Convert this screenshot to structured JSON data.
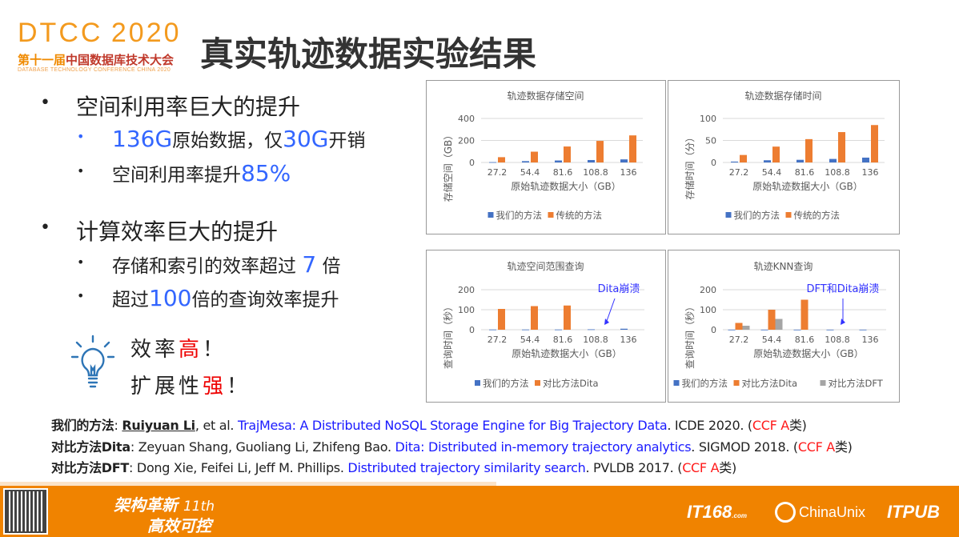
{
  "logo": {
    "main": "DTCC",
    "year": "2020",
    "sub_orange": "第十一届",
    "sub_dark": "中国数据库技术大会",
    "en": "DATABASE TECHNOLOGY CONFERENCE CHINA 2020"
  },
  "title": "真实轨迹数据实验结果",
  "bullets": [
    {
      "text": "空间利用率巨大的提升",
      "subs": [
        {
          "parts": [
            {
              "t": "136G",
              "hl": true
            },
            {
              "t": "原始数据，仅"
            },
            {
              "t": "30G",
              "hl": true
            },
            {
              "t": "开销"
            }
          ]
        },
        {
          "parts": [
            {
              "t": "空间利用率提升"
            },
            {
              "t": "85%",
              "hl": true
            }
          ]
        }
      ]
    },
    {
      "text": "计算效率巨大的提升",
      "subs": [
        {
          "parts": [
            {
              "t": "存储和索引的效率超过 "
            },
            {
              "t": "7",
              "hl": true
            },
            {
              "t": " 倍"
            }
          ]
        },
        {
          "parts": [
            {
              "t": "超过"
            },
            {
              "t": "100",
              "hl": true
            },
            {
              "t": "倍的查询效率提升"
            }
          ]
        }
      ]
    }
  ],
  "slogan": {
    "line1a": "效率",
    "line1b": "高",
    "line1c": "！",
    "line2a": "扩展性",
    "line2b": "强",
    "line2c": "！"
  },
  "colors": {
    "ours": "#4472c4",
    "orange": "#ed7d31",
    "gray": "#a5a5a5",
    "annotation": "#3333ff",
    "footer": "#f08300"
  },
  "chart_data": [
    {
      "type": "bar",
      "title": "轨迹数据存储空间",
      "xlabel": "原始轨迹数据大小（GB）",
      "ylabel": "存储空间（GB）",
      "ylim": [
        0,
        400
      ],
      "yticks": [
        0,
        200,
        400
      ],
      "grid": true,
      "legend": "bottom",
      "categories": [
        "27.2",
        "54.4",
        "81.6",
        "108.8",
        "136"
      ],
      "series": [
        {
          "name": "我们的方法",
          "color": "#4472c4",
          "values": [
            3,
            12,
            18,
            22,
            28
          ]
        },
        {
          "name": "传统的方法",
          "color": "#ed7d31",
          "values": [
            48,
            98,
            145,
            196,
            246
          ]
        }
      ]
    },
    {
      "type": "bar",
      "title": "轨迹数据存储时间",
      "xlabel": "原始轨迹数据大小（GB）",
      "ylabel": "存储时间（分）",
      "ylim": [
        0,
        100
      ],
      "yticks": [
        0,
        50,
        100
      ],
      "grid": true,
      "legend": "bottom",
      "categories": [
        "27.2",
        "54.4",
        "81.6",
        "108.8",
        "136"
      ],
      "series": [
        {
          "name": "我们的方法",
          "color": "#4472c4",
          "values": [
            2,
            5,
            6,
            8,
            11
          ]
        },
        {
          "name": "传统的方法",
          "color": "#ed7d31",
          "values": [
            17,
            36,
            53,
            69,
            85
          ]
        }
      ]
    },
    {
      "type": "bar",
      "title": "轨迹空间范围查询",
      "xlabel": "原始轨迹数据大小（GB）",
      "ylabel": "查询时间（秒）",
      "ylim": [
        0,
        200
      ],
      "yticks": [
        0,
        100,
        200
      ],
      "grid": true,
      "legend": "bottom",
      "categories": [
        "27.2",
        "54.4",
        "81.6",
        "108.8",
        "136"
      ],
      "series": [
        {
          "name": "我们的方法",
          "color": "#4472c4",
          "values": [
            1,
            1,
            1,
            2,
            5
          ]
        },
        {
          "name": "对比方法Dita",
          "color": "#ed7d31",
          "values": [
            104,
            118,
            121,
            null,
            null
          ]
        }
      ],
      "annotation": {
        "text": "Dita崩溃",
        "category": "108.8"
      }
    },
    {
      "type": "bar",
      "title": "轨迹KNN查询",
      "xlabel": "原始轨迹数据大小（GB）",
      "ylabel": "查询时间（秒）",
      "ylim": [
        0,
        200
      ],
      "yticks": [
        0,
        100,
        200
      ],
      "grid": true,
      "legend": "bottom",
      "categories": [
        "27.2",
        "54.4",
        "81.6",
        "108.8",
        "136"
      ],
      "series": [
        {
          "name": "我们的方法",
          "color": "#4472c4",
          "values": [
            0.5,
            0.5,
            0.5,
            0.5,
            0.5
          ]
        },
        {
          "name": "对比方法Dita",
          "color": "#ed7d31",
          "values": [
            34,
            100,
            150,
            null,
            null
          ]
        },
        {
          "name": "对比方法DFT",
          "color": "#a5a5a5",
          "values": [
            20,
            54,
            null,
            null,
            null
          ]
        }
      ],
      "annotation": {
        "text": "DFT和Dita崩溃",
        "category": "108.8"
      }
    }
  ],
  "references": [
    {
      "label": "我们的方法",
      "sep": ": ",
      "author_ul": "Ruiyuan Li",
      "authors": ", et al. ",
      "paper": "TrajMesa: A Distributed NoSQL Storage Engine for Big Trajectory Data",
      "venue": ". ICDE 2020. (",
      "ccf": "CCF A",
      "cls": "类)"
    },
    {
      "label": "对比方法Dita",
      "sep": ": ",
      "author_ul": "",
      "authors": "Zeyuan Shang, Guoliang Li, Zhifeng Bao. ",
      "paper": "Dita: Distributed in-memory trajectory analytics",
      "venue": ". SIGMOD 2018. (",
      "ccf": "CCF A",
      "cls": "类)"
    },
    {
      "label": "对比方法DFT",
      "sep": ": ",
      "author_ul": "",
      "authors": "Dong Xie, Feifei Li, Jeff M. Phillips. ",
      "paper": "Distributed trajectory similarity search",
      "venue": ". PVLDB 2017. (",
      "ccf": "CCF A",
      "cls": "类)"
    }
  ],
  "footer": {
    "slogan1": "架构革新",
    "edition": "11th",
    "slogan2": "高效可控",
    "brand1": "IT168",
    "brand1_sub": ".com",
    "brand2": "ChinaUnix",
    "brand3": "ITPUB"
  }
}
